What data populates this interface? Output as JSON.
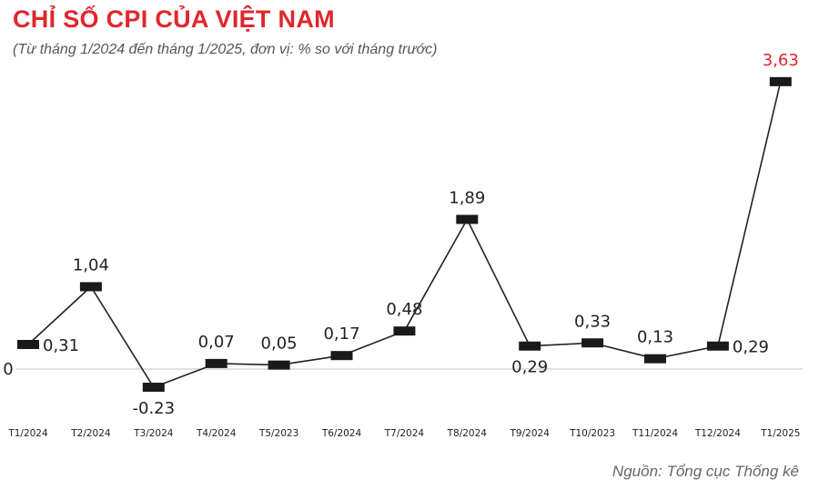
{
  "header": {
    "title": "CHỈ SỐ CPI CỦA VIỆT NAM",
    "subtitle": "(Từ tháng 1/2024 đến tháng 1/2025, đơn vị: % so với tháng trước)"
  },
  "footer": {
    "source": "Nguồn: Tổng cục Thống kê"
  },
  "chart_data": {
    "type": "line",
    "title": "CHỈ SỐ CPI CỦA VIỆT NAM",
    "subtitle": "(Từ tháng 1/2024 đến tháng 1/2025, đơn vị: % so với tháng trước)",
    "xlabel": "",
    "ylabel": "",
    "categories": [
      "T1/2024",
      "T2/2024",
      "T3/2024",
      "T4/2024",
      "T5/2023",
      "T6/2024",
      "T7/2024",
      "T8/2024",
      "T9/2024",
      "T10/2023",
      "T11/2024",
      "T12/2024",
      "T1/2025"
    ],
    "values": [
      0.31,
      1.04,
      -0.23,
      0.07,
      0.05,
      0.17,
      0.48,
      1.89,
      0.29,
      0.33,
      0.13,
      0.29,
      3.63
    ],
    "value_labels": [
      "0,31",
      "1,04",
      "-0.23",
      "0,07",
      "0,05",
      "0,17",
      "0,48",
      "1,89",
      "0,29",
      "0,33",
      "0,13",
      "0,29",
      "3,63"
    ],
    "y_ticks": [
      "0"
    ],
    "ylim": [
      -0.6,
      3.9
    ],
    "grid": false,
    "highlight_color": "#e1262d",
    "line_color": "#222222"
  }
}
